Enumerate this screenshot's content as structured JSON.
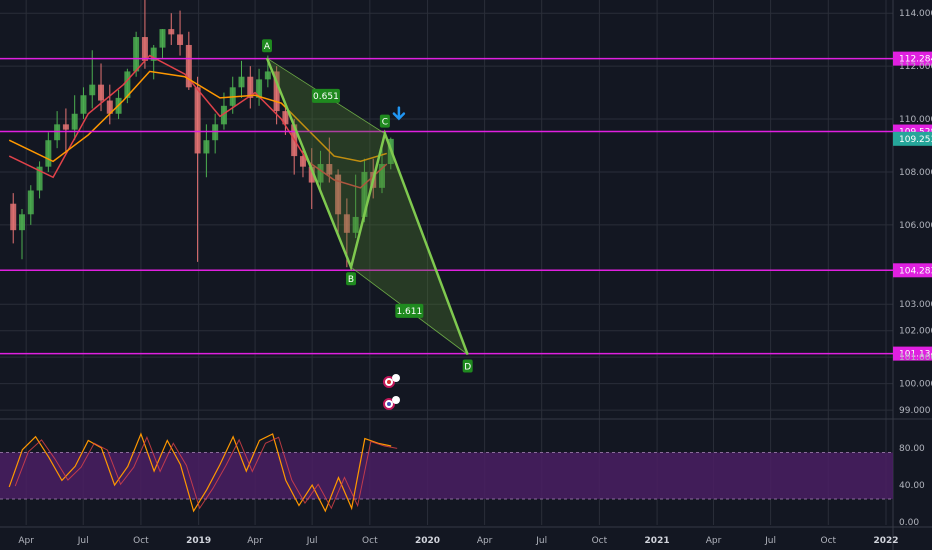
{
  "colors": {
    "background": "#131722",
    "grid": "#2a2e39",
    "candle_up": "#4caf50",
    "candle_down": "#e57373",
    "level_line": "#e020e0",
    "pattern_fill": "#4c7a2a",
    "pattern_line": "#7fc94f",
    "ma_fast": "#e0424a",
    "ma_slow": "#ff9800",
    "current_price": "#26a69a",
    "stoch_band": "#4a1f63",
    "stoch_line": "#ff9800",
    "arrow": "#2196f3"
  },
  "chart_data": [
    {
      "type": "candlestick",
      "title": "",
      "x_axis_labels": [
        "Apr",
        "Jul",
        "Oct",
        "2019",
        "Apr",
        "Jul",
        "Oct",
        "2020",
        "Apr",
        "Jul",
        "Oct",
        "2021",
        "Apr",
        "Jul",
        "Oct",
        "2022"
      ],
      "x_axis_bold_labels": [
        "2019",
        "2020",
        "2021",
        "2022"
      ],
      "y_axis_ticks": [
        99.0,
        100.0,
        101.0,
        102.0,
        103.0,
        106.0,
        108.0,
        110.0,
        112.0,
        114.0
      ],
      "y_axis_tick_labels": [
        "99.000",
        "100.000",
        "101.000",
        "102.000",
        "103.000",
        "106.000",
        "108.000",
        "110.000",
        "112.000",
        "114.000"
      ],
      "ylim": [
        98.7,
        114.5
      ],
      "horizontal_levels": [
        {
          "value": 112.284,
          "label": "112.284"
        },
        {
          "value": 109.528,
          "label": "109.528"
        },
        {
          "value": 104.283,
          "label": "104.283"
        },
        {
          "value": 101.134,
          "label": "101.134"
        }
      ],
      "current_price": {
        "value": 109.253,
        "label": "109.253"
      },
      "pattern": {
        "points": [
          {
            "label": "A",
            "date": "2019-04-20",
            "value": 112.3
          },
          {
            "label": "B",
            "date": "2019-09-01",
            "value": 104.4
          },
          {
            "label": "C",
            "date": "2019-10-25",
            "value": 109.45
          },
          {
            "label": "D",
            "date": "2020-03-05",
            "value": 101.1
          }
        ],
        "ratios": [
          {
            "label": "0.651",
            "between": [
              "A",
              "C"
            ]
          },
          {
            "label": "1.611",
            "between": [
              "B",
              "D"
            ]
          }
        ]
      },
      "series": [
        {
          "type": "candles",
          "x": [
            "2018-03-05",
            "2018-03-19",
            "2018-04-02",
            "2018-04-16",
            "2018-04-30",
            "2018-05-14",
            "2018-05-28",
            "2018-06-11",
            "2018-06-25",
            "2018-07-09",
            "2018-07-23",
            "2018-08-06",
            "2018-08-20",
            "2018-09-03",
            "2018-09-17",
            "2018-10-01",
            "2018-10-15",
            "2018-10-29",
            "2018-11-12",
            "2018-11-26",
            "2018-12-10",
            "2018-12-24",
            "2019-01-07",
            "2019-01-21",
            "2019-02-04",
            "2019-02-18",
            "2019-03-04",
            "2019-03-18",
            "2019-04-01",
            "2019-04-15",
            "2019-04-29",
            "2019-05-13",
            "2019-05-27",
            "2019-06-10",
            "2019-06-24",
            "2019-07-08",
            "2019-07-22",
            "2019-08-05",
            "2019-08-19",
            "2019-09-02",
            "2019-09-16",
            "2019-09-30",
            "2019-10-14",
            "2019-10-28"
          ],
          "open": [
            106.8,
            105.8,
            106.4,
            107.3,
            108.2,
            109.2,
            109.8,
            109.6,
            110.2,
            110.9,
            111.3,
            110.7,
            110.2,
            110.8,
            111.8,
            113.1,
            112.2,
            112.7,
            113.4,
            113.2,
            112.8,
            111.2,
            108.7,
            109.2,
            109.8,
            110.5,
            111.2,
            111.6,
            110.8,
            111.5,
            111.8,
            110.3,
            109.8,
            108.6,
            108.2,
            107.6,
            108.3,
            107.9,
            106.4,
            105.7,
            106.3,
            108.0,
            107.4,
            108.3
          ],
          "high": [
            107.2,
            106.6,
            107.5,
            108.4,
            109.5,
            110.3,
            110.4,
            110.9,
            111.2,
            112.6,
            112.1,
            111.3,
            111.1,
            111.9,
            113.3,
            114.5,
            112.8,
            113.4,
            114.0,
            114.1,
            113.3,
            111.6,
            109.8,
            110.2,
            111.0,
            111.6,
            112.2,
            112.0,
            111.9,
            112.4,
            112.0,
            110.6,
            110.0,
            108.9,
            108.9,
            108.8,
            109.3,
            108.1,
            107.0,
            107.9,
            108.5,
            108.5,
            109.1,
            109.3
          ],
          "low": [
            105.3,
            104.7,
            106.0,
            107.0,
            108.0,
            108.9,
            108.7,
            109.2,
            110.0,
            110.4,
            110.3,
            109.8,
            110.0,
            110.6,
            111.6,
            111.9,
            111.5,
            112.3,
            112.8,
            112.4,
            111.1,
            104.6,
            107.8,
            108.7,
            109.6,
            110.2,
            110.8,
            110.4,
            110.5,
            111.2,
            109.8,
            109.4,
            107.9,
            107.8,
            106.6,
            107.2,
            107.6,
            105.6,
            104.4,
            105.5,
            106.1,
            107.0,
            107.2,
            108.1
          ],
          "close": [
            105.8,
            106.4,
            107.3,
            108.2,
            109.2,
            109.8,
            109.6,
            110.2,
            110.9,
            111.3,
            110.7,
            110.2,
            110.8,
            111.8,
            113.1,
            112.2,
            112.7,
            113.4,
            113.2,
            112.8,
            111.2,
            108.7,
            109.2,
            109.8,
            110.5,
            111.2,
            111.6,
            110.8,
            111.5,
            111.8,
            110.3,
            109.8,
            108.6,
            108.2,
            107.6,
            108.3,
            107.9,
            106.4,
            105.7,
            106.3,
            108.0,
            107.4,
            108.3,
            109.25
          ]
        },
        {
          "type": "line",
          "color_key": "ma_fast",
          "x": [
            "2018-03-05",
            "2018-05-14",
            "2018-07-09",
            "2018-09-03",
            "2018-10-15",
            "2018-12-10",
            "2019-02-04",
            "2019-04-01",
            "2019-05-13",
            "2019-06-24",
            "2019-08-05",
            "2019-09-16",
            "2019-10-28"
          ],
          "values": [
            108.6,
            107.8,
            110.2,
            111.3,
            112.4,
            111.7,
            110.1,
            111.0,
            110.0,
            108.4,
            107.7,
            107.4,
            108.3
          ]
        },
        {
          "type": "line",
          "color_key": "ma_slow",
          "x": [
            "2018-03-05",
            "2018-05-14",
            "2018-07-09",
            "2018-09-03",
            "2018-10-15",
            "2018-12-10",
            "2019-02-04",
            "2019-04-01",
            "2019-05-13",
            "2019-06-24",
            "2019-08-05",
            "2019-09-16",
            "2019-10-28"
          ],
          "values": [
            109.2,
            108.4,
            109.4,
            110.7,
            111.8,
            111.6,
            110.8,
            110.9,
            110.6,
            109.6,
            108.6,
            108.4,
            108.7
          ]
        }
      ]
    },
    {
      "type": "line",
      "title": "",
      "y_axis_ticks": [
        0.0,
        40.0,
        80.0
      ],
      "y_axis_tick_labels": [
        "0.00",
        "40.00",
        "80.00"
      ],
      "ylim": [
        -3,
        110
      ],
      "band": [
        25,
        75
      ],
      "series": [
        {
          "x": [
            "2018-03-05",
            "2018-03-26",
            "2018-04-16",
            "2018-05-07",
            "2018-05-28",
            "2018-06-18",
            "2018-07-09",
            "2018-07-30",
            "2018-08-20",
            "2018-09-10",
            "2018-10-01",
            "2018-10-22",
            "2018-11-12",
            "2018-12-03",
            "2018-12-24",
            "2019-01-14",
            "2019-02-04",
            "2019-02-25",
            "2019-03-18",
            "2019-04-08",
            "2019-04-29",
            "2019-05-20",
            "2019-06-10",
            "2019-07-01",
            "2019-07-22",
            "2019-08-12",
            "2019-09-02",
            "2019-09-23",
            "2019-10-14",
            "2019-11-04"
          ],
          "values": [
            38,
            78,
            92,
            70,
            45,
            60,
            88,
            80,
            40,
            60,
            95,
            55,
            88,
            62,
            12,
            35,
            62,
            92,
            55,
            88,
            95,
            45,
            18,
            40,
            12,
            48,
            15,
            90,
            85,
            82
          ]
        }
      ]
    }
  ]
}
